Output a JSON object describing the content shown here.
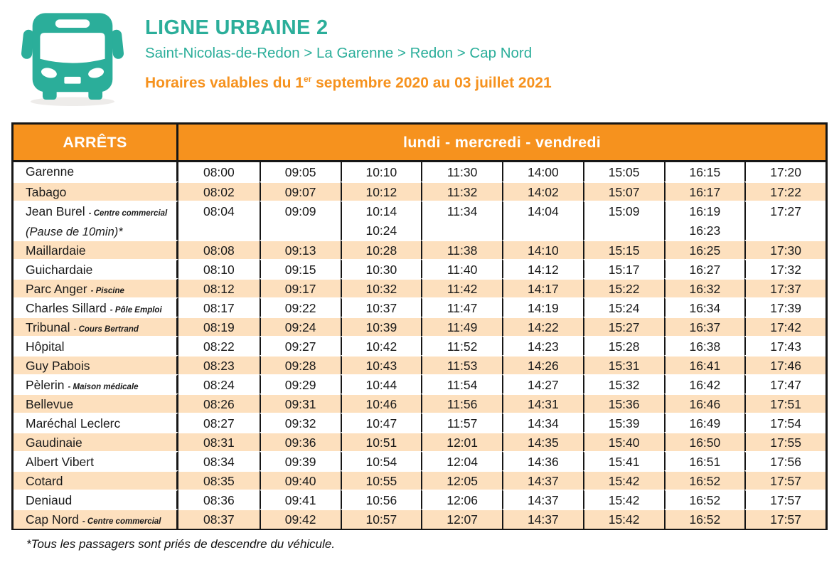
{
  "header": {
    "title": "LIGNE URBAINE 2",
    "route": "Saint-Nicolas-de-Redon > La Garenne > Redon > Cap Nord",
    "validity_prefix": "Horaires valables du 1",
    "validity_sup": "er",
    "validity_suffix": " septembre 2020 au 03 juillet 2021",
    "bus_icon": "bus-icon"
  },
  "colors": {
    "teal": "#2bae9a",
    "orange": "#f6921e",
    "row_peach": "#fde0be",
    "border_black": "#161616"
  },
  "table": {
    "col_header_stops": "ARRÊTS",
    "col_header_days": "lundi - mercredi - vendredi",
    "rows": [
      {
        "stop": "Garenne",
        "shaded": false,
        "times": [
          "08:00",
          "09:05",
          "10:10",
          "11:30",
          "14:00",
          "15:05",
          "16:15",
          "17:20"
        ]
      },
      {
        "stop": "Tabago",
        "shaded": true,
        "times": [
          "08:02",
          "09:07",
          "10:12",
          "11:32",
          "14:02",
          "15:07",
          "16:17",
          "17:22"
        ]
      },
      {
        "stop": "Jean Burel",
        "note": "- Centre commercial",
        "line2": "(Pause de 10min)*",
        "shaded": false,
        "times": [
          "08:04",
          "09:09",
          "10:14",
          "11:34",
          "14:04",
          "15:09",
          "16:19",
          "17:27"
        ],
        "times2": [
          "",
          "",
          "10:24",
          "",
          "",
          "",
          "16:23",
          ""
        ]
      },
      {
        "stop": "Maillardaie",
        "shaded": true,
        "times": [
          "08:08",
          "09:13",
          "10:28",
          "11:38",
          "14:10",
          "15:15",
          "16:25",
          "17:30"
        ]
      },
      {
        "stop": "Guichardaie",
        "shaded": false,
        "times": [
          "08:10",
          "09:15",
          "10:30",
          "11:40",
          "14:12",
          "15:17",
          "16:27",
          "17:32"
        ]
      },
      {
        "stop": "Parc Anger",
        "note": "- Piscine",
        "shaded": true,
        "times": [
          "08:12",
          "09:17",
          "10:32",
          "11:42",
          "14:17",
          "15:22",
          "16:32",
          "17:37"
        ]
      },
      {
        "stop": "Charles Sillard",
        "note": "- Pôle Emploi",
        "shaded": false,
        "times": [
          "08:17",
          "09:22",
          "10:37",
          "11:47",
          "14:19",
          "15:24",
          "16:34",
          "17:39"
        ]
      },
      {
        "stop": "Tribunal",
        "note": "- Cours Bertrand",
        "shaded": true,
        "times": [
          "08:19",
          "09:24",
          "10:39",
          "11:49",
          "14:22",
          "15:27",
          "16:37",
          "17:42"
        ]
      },
      {
        "stop": "Hôpital",
        "shaded": false,
        "times": [
          "08:22",
          "09:27",
          "10:42",
          "11:52",
          "14:23",
          "15:28",
          "16:38",
          "17:43"
        ]
      },
      {
        "stop": "Guy Pabois",
        "shaded": true,
        "times": [
          "08:23",
          "09:28",
          "10:43",
          "11:53",
          "14:26",
          "15:31",
          "16:41",
          "17:46"
        ]
      },
      {
        "stop": "Pèlerin",
        "note": "- Maison médicale",
        "shaded": false,
        "times": [
          "08:24",
          "09:29",
          "10:44",
          "11:54",
          "14:27",
          "15:32",
          "16:42",
          "17:47"
        ]
      },
      {
        "stop": "Bellevue",
        "shaded": true,
        "times": [
          "08:26",
          "09:31",
          "10:46",
          "11:56",
          "14:31",
          "15:36",
          "16:46",
          "17:51"
        ]
      },
      {
        "stop": "Maréchal Leclerc",
        "shaded": false,
        "times": [
          "08:27",
          "09:32",
          "10:47",
          "11:57",
          "14:34",
          "15:39",
          "16:49",
          "17:54"
        ]
      },
      {
        "stop": "Gaudinaie",
        "shaded": true,
        "times": [
          "08:31",
          "09:36",
          "10:51",
          "12:01",
          "14:35",
          "15:40",
          "16:50",
          "17:55"
        ]
      },
      {
        "stop": "Albert Vibert",
        "shaded": false,
        "times": [
          "08:34",
          "09:39",
          "10:54",
          "12:04",
          "14:36",
          "15:41",
          "16:51",
          "17:56"
        ]
      },
      {
        "stop": "Cotard",
        "shaded": true,
        "times": [
          "08:35",
          "09:40",
          "10:55",
          "12:05",
          "14:37",
          "15:42",
          "16:52",
          "17:57"
        ]
      },
      {
        "stop": "Deniaud",
        "shaded": false,
        "times": [
          "08:36",
          "09:41",
          "10:56",
          "12:06",
          "14:37",
          "15:42",
          "16:52",
          "17:57"
        ]
      },
      {
        "stop": "Cap Nord",
        "note": "- Centre commercial",
        "shaded": true,
        "times": [
          "08:37",
          "09:42",
          "10:57",
          "12:07",
          "14:37",
          "15:42",
          "16:52",
          "17:57"
        ]
      }
    ]
  },
  "footer": {
    "note": "*Tous les passagers sont priés de descendre du véhicule."
  }
}
